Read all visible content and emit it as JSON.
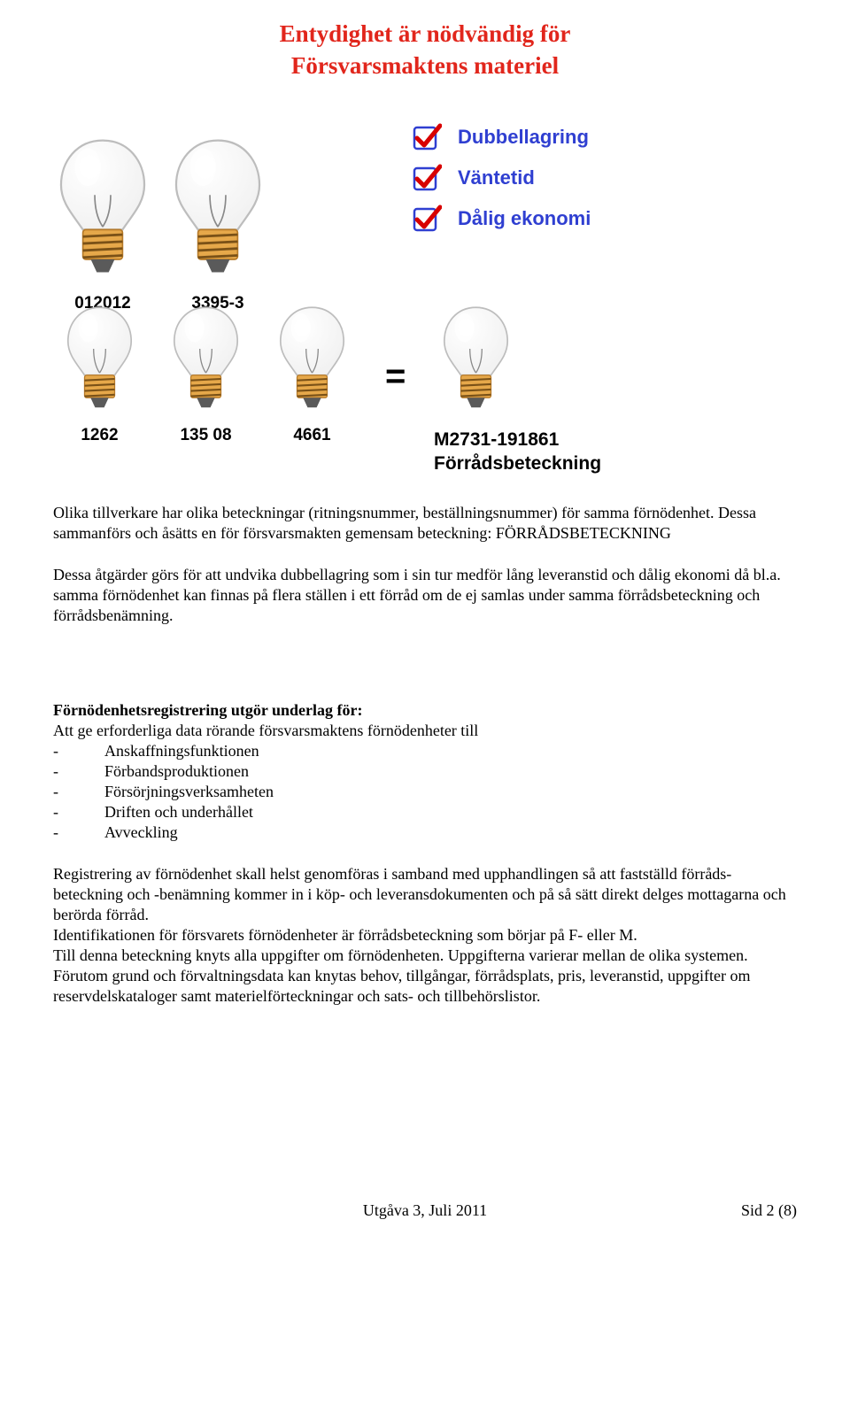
{
  "title": {
    "line1": "Entydighet är nödvändig för",
    "line2": "Försvarsmaktens materiel",
    "color": "#e1261c"
  },
  "checks": [
    {
      "label": "Dubbellagring",
      "color": "#2f3fd1"
    },
    {
      "label": "Väntetid",
      "color": "#2f3fd1"
    },
    {
      "label": "Dålig ekonomi",
      "color": "#2f3fd1"
    }
  ],
  "bulbs": {
    "large1": {
      "label": "012012"
    },
    "large2": {
      "label": "3395-3"
    },
    "small1": {
      "label": "1262"
    },
    "small2": {
      "label": "135 08"
    },
    "small3": {
      "label": "4661"
    },
    "result": {
      "label": ""
    }
  },
  "equals": "=",
  "result": {
    "code": "M2731-191861",
    "name": "Förrådsbeteckning"
  },
  "intro_para": "Olika tillverkare har olika beteckningar (ritningsnummer, beställningsnummer) för samma förnödenhet. Dessa sammanförs och åsätts en för försvarsmakten gemensam beteckning: FÖRRÅDSBETECKNING",
  "second_para": "Dessa åtgärder görs för att undvika dubbellagring som i sin tur medför lång leveranstid och dålig ekonomi då bl.a. samma förnödenhet kan finnas på flera ställen i ett förråd om de ej samlas under samma förrådsbeteckning och förrådsbenämning.",
  "section1": {
    "title": "Förnödenhetsregistrering utgör underlag för:",
    "intro": "Att ge erforderliga data rörande försvarsmaktens förnödenheter till",
    "items": [
      "Anskaffningsfunktionen",
      "Förbandsproduktionen",
      "Försörjningsverksamheten",
      "Driften och underhållet",
      "Avveckling"
    ]
  },
  "para3": "Registrering av förnödenhet skall helst genomföras i samband med upphandlingen så att fastställd förråds- beteckning och -benämning kommer in i köp- och leveransdokumenten och på så sätt direkt delges mottagarna och berörda förråd.",
  "para4": "Identifikationen för försvarets förnödenheter är förrådsbeteckning som börjar på F- eller M.",
  "para5": "Till denna beteckning knyts alla uppgifter om förnödenheten. Uppgifterna varierar mellan de olika systemen. Förutom grund och förvaltningsdata kan knytas behov, tillgångar, förrådsplats, pris, leveranstid, uppgifter om reservdelskataloger samt materielförteckningar och sats- och tillbehörslistor.",
  "footer": {
    "edition": "Utgåva 3, Juli 2011",
    "page": "Sid 2 (8)"
  },
  "style": {
    "check_box_border": "#2f3fd1",
    "check_mark": "#d80000",
    "bulb_glass_fill": "#f2f2f2",
    "bulb_glass_stroke": "#bdbdbd",
    "bulb_base_stroke": "#b67a29",
    "bulb_base_fill": "#e6a84a",
    "bulb_base_dark": "#7a5117",
    "bulb_bottom": "#5a5a5a"
  }
}
